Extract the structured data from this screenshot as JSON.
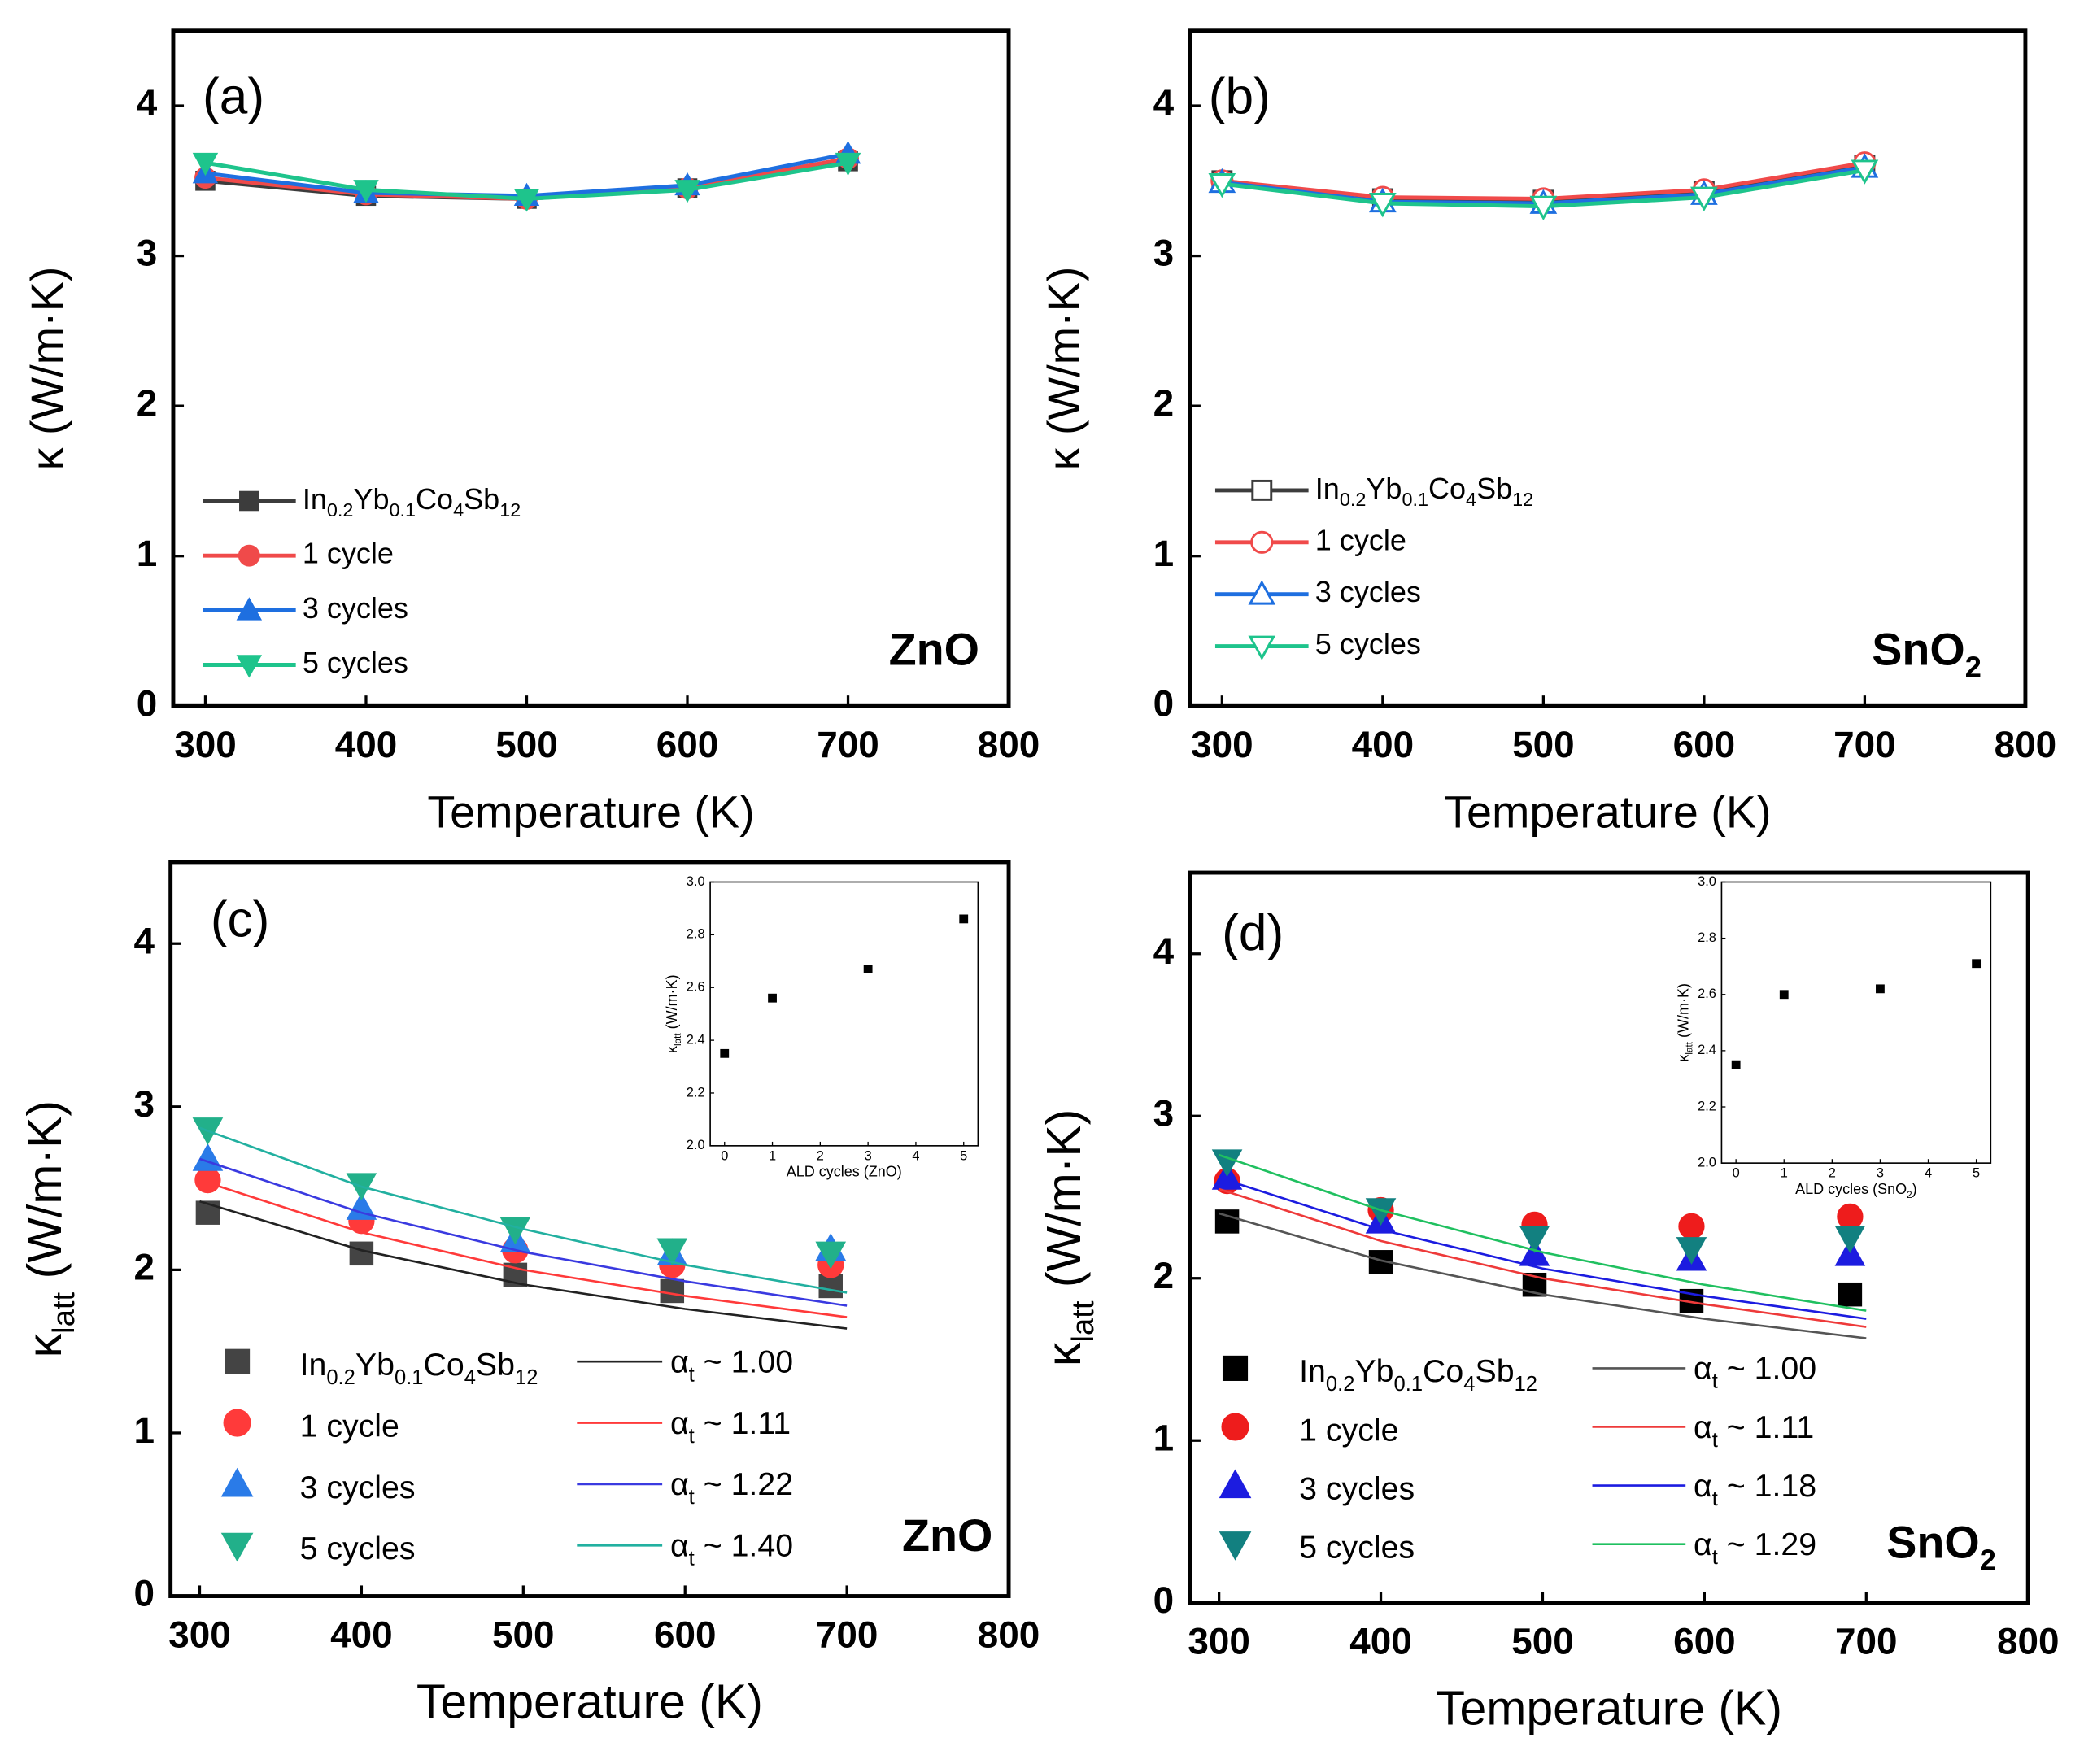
{
  "chart_data": [
    {
      "type": "line",
      "panel_label": "(a)",
      "material": "ZnO",
      "xlabel": "Temperature (K)",
      "ylabel": "κ (W/m·K)",
      "x": [
        300,
        400,
        500,
        600,
        700
      ],
      "xlim": [
        280,
        800
      ],
      "xticks": [
        300,
        400,
        500,
        600,
        700,
        800
      ],
      "ylim": [
        0,
        4.5
      ],
      "yticks": [
        0,
        1,
        2,
        3,
        4
      ],
      "series": [
        {
          "name": "In0.2Yb0.1Co4Sb12",
          "color": "#3c3c3c",
          "marker": "square",
          "filled": true,
          "line": true,
          "values": [
            3.5,
            3.4,
            3.38,
            3.45,
            3.63
          ]
        },
        {
          "name": "1 cycle",
          "color": "#f04a4a",
          "marker": "circle",
          "filled": true,
          "line": true,
          "values": [
            3.52,
            3.41,
            3.38,
            3.45,
            3.65
          ]
        },
        {
          "name": "3 cycles",
          "color": "#1e6fe0",
          "marker": "triangle-up",
          "filled": true,
          "line": true,
          "values": [
            3.55,
            3.42,
            3.4,
            3.47,
            3.68
          ]
        },
        {
          "name": "5 cycles",
          "color": "#1ec48c",
          "marker": "triangle-down",
          "filled": true,
          "line": true,
          "values": [
            3.62,
            3.44,
            3.38,
            3.44,
            3.62
          ]
        }
      ]
    },
    {
      "type": "line",
      "panel_label": "(b)",
      "material": "SnO2",
      "xlabel": "Temperature (K)",
      "ylabel": "κ (W/m·K)",
      "x": [
        300,
        400,
        500,
        600,
        700
      ],
      "xlim": [
        280,
        800
      ],
      "xticks": [
        300,
        400,
        500,
        600,
        700,
        800
      ],
      "ylim": [
        0,
        4.5
      ],
      "yticks": [
        0,
        1,
        2,
        3,
        4
      ],
      "series": [
        {
          "name": "In0.2Yb0.1Co4Sb12",
          "color": "#3c3c3c",
          "marker": "square",
          "filled": false,
          "line": true,
          "values": [
            3.5,
            3.38,
            3.37,
            3.43,
            3.6
          ]
        },
        {
          "name": "1 cycle",
          "color": "#f04a4a",
          "marker": "circle",
          "filled": false,
          "line": true,
          "values": [
            3.5,
            3.39,
            3.38,
            3.44,
            3.62
          ]
        },
        {
          "name": "3 cycles",
          "color": "#1e6fe0",
          "marker": "triangle-up",
          "filled": false,
          "line": true,
          "values": [
            3.49,
            3.36,
            3.35,
            3.41,
            3.59
          ]
        },
        {
          "name": "5 cycles",
          "color": "#1ec48c",
          "marker": "triangle-down",
          "filled": false,
          "line": true,
          "values": [
            3.48,
            3.35,
            3.33,
            3.39,
            3.57
          ]
        }
      ]
    },
    {
      "type": "scatter",
      "panel_label": "(c)",
      "material": "ZnO",
      "xlabel": "Temperature (K)",
      "ylabel": "κlatt (W/m·K)",
      "xlim": [
        282,
        800
      ],
      "xticks": [
        300,
        400,
        500,
        600,
        700,
        800
      ],
      "ylim": [
        0,
        4.5
      ],
      "yticks": [
        0,
        1,
        2,
        3,
        4
      ],
      "series": [
        {
          "name": "In0.2Yb0.1Co4Sb12",
          "color": "#444444",
          "marker": "square",
          "filled": true,
          "line": false,
          "x": [
            305,
            400,
            495,
            592,
            690
          ],
          "values": [
            2.35,
            2.1,
            1.97,
            1.87,
            1.9
          ]
        },
        {
          "name": "1 cycle",
          "color": "#ff3a3a",
          "marker": "circle",
          "filled": true,
          "line": false,
          "x": [
            305,
            400,
            495,
            592,
            690
          ],
          "values": [
            2.55,
            2.3,
            2.12,
            2.03,
            2.03
          ]
        },
        {
          "name": "3 cycles",
          "color": "#2a7be8",
          "marker": "triangle-up",
          "filled": true,
          "line": false,
          "x": [
            305,
            400,
            495,
            592,
            690
          ],
          "values": [
            2.68,
            2.38,
            2.18,
            2.1,
            2.13
          ]
        },
        {
          "name": "5 cycles",
          "color": "#22b08a",
          "marker": "triangle-down",
          "filled": true,
          "line": false,
          "x": [
            305,
            400,
            495,
            592,
            690
          ],
          "values": [
            2.86,
            2.52,
            2.25,
            2.12,
            2.1
          ]
        },
        {
          "name": "αt ~ 1.00",
          "color": "#222222",
          "line": true,
          "x": [
            300,
            400,
            500,
            600,
            700
          ],
          "values": [
            2.42,
            2.12,
            1.91,
            1.76,
            1.64
          ]
        },
        {
          "name": "αt ~ 1.11",
          "color": "#ff3a3a",
          "line": true,
          "x": [
            300,
            400,
            500,
            600,
            700
          ],
          "values": [
            2.55,
            2.23,
            2.0,
            1.84,
            1.71
          ]
        },
        {
          "name": "αt ~ 1.22",
          "color": "#3a3ae0",
          "line": true,
          "x": [
            300,
            400,
            500,
            600,
            700
          ],
          "values": [
            2.68,
            2.35,
            2.11,
            1.93,
            1.78
          ]
        },
        {
          "name": "αt ~ 1.40",
          "color": "#22b0a0",
          "line": true,
          "x": [
            300,
            400,
            500,
            600,
            700
          ],
          "values": [
            2.87,
            2.51,
            2.25,
            2.03,
            1.86
          ]
        }
      ]
    },
    {
      "type": "scatter",
      "panel_label": "(d)",
      "material": "SnO2",
      "xlabel": "Temperature (K)",
      "ylabel": "κlatt (W/m·K)",
      "xlim": [
        282,
        800
      ],
      "xticks": [
        300,
        400,
        500,
        600,
        700,
        800
      ],
      "ylim": [
        0,
        4.5
      ],
      "yticks": [
        0,
        1,
        2,
        3,
        4
      ],
      "series": [
        {
          "name": "In0.2Yb0.1Co4Sb12",
          "color": "#000000",
          "marker": "square",
          "filled": true,
          "line": false,
          "x": [
            305,
            400,
            495,
            592,
            690
          ],
          "values": [
            2.35,
            2.1,
            1.96,
            1.86,
            1.9
          ]
        },
        {
          "name": "1 cycle",
          "color": "#ee1c1c",
          "marker": "circle",
          "filled": true,
          "line": false,
          "x": [
            305,
            400,
            495,
            592,
            690
          ],
          "values": [
            2.6,
            2.42,
            2.33,
            2.32,
            2.38
          ]
        },
        {
          "name": "3 cycles",
          "color": "#1c1ce0",
          "marker": "triangle-up",
          "filled": true,
          "line": false,
          "x": [
            305,
            400,
            495,
            592,
            690
          ],
          "values": [
            2.62,
            2.35,
            2.15,
            2.12,
            2.15
          ]
        },
        {
          "name": "5 cycles",
          "color": "#128080",
          "marker": "triangle-down",
          "filled": true,
          "line": false,
          "x": [
            305,
            400,
            495,
            592,
            690
          ],
          "values": [
            2.72,
            2.42,
            2.25,
            2.18,
            2.25
          ]
        },
        {
          "name": "αt ~ 1.00",
          "color": "#555555",
          "line": true,
          "x": [
            300,
            400,
            500,
            600,
            700
          ],
          "values": [
            2.4,
            2.11,
            1.9,
            1.75,
            1.63
          ]
        },
        {
          "name": "αt ~ 1.11",
          "color": "#ee3a3a",
          "line": true,
          "x": [
            300,
            400,
            500,
            600,
            700
          ],
          "values": [
            2.55,
            2.23,
            2.0,
            1.84,
            1.7
          ]
        },
        {
          "name": "αt ~ 1.18",
          "color": "#1c1ce0",
          "line": true,
          "x": [
            300,
            400,
            500,
            600,
            700
          ],
          "values": [
            2.62,
            2.3,
            2.06,
            1.89,
            1.75
          ]
        },
        {
          "name": "αt ~ 1.29",
          "color": "#20c060",
          "line": true,
          "x": [
            300,
            400,
            500,
            600,
            700
          ],
          "values": [
            2.76,
            2.42,
            2.16,
            1.96,
            1.8
          ]
        }
      ]
    },
    {
      "type": "scatter",
      "xlabel": "ALD cycles (ZnO)",
      "ylabel": "κlatt (W/m·K)",
      "color": "#000000",
      "marker": "square",
      "x": [
        0,
        1,
        3,
        5
      ],
      "values": [
        2.35,
        2.56,
        2.67,
        2.86
      ],
      "xlim": [
        -0.3,
        5.3
      ],
      "xticks": [
        0,
        1,
        2,
        3,
        4,
        5
      ],
      "ylim": [
        2.0,
        3.0
      ],
      "yticks": [
        {
          "value": 2.0,
          "label": "2.0"
        },
        2.2,
        2.4,
        2.6,
        2.8,
        {
          "value": 3.0,
          "label": "3.0"
        }
      ]
    },
    {
      "type": "scatter",
      "xlabel": "ALD cycles (SnO2)",
      "ylabel": "κlatt (W/m·K)",
      "color": "#000000",
      "marker": "square",
      "x": [
        0,
        1,
        3,
        5
      ],
      "values": [
        2.35,
        2.6,
        2.62,
        2.71
      ],
      "xlim": [
        -0.3,
        5.3
      ],
      "xticks": [
        0,
        1,
        2,
        3,
        4,
        5
      ],
      "ylim": [
        2.0,
        3.0
      ],
      "yticks": [
        {
          "value": 2.0,
          "label": "2.0"
        },
        2.2,
        2.4,
        2.6,
        2.8,
        {
          "value": 3.0,
          "label": "3.0"
        }
      ]
    }
  ]
}
